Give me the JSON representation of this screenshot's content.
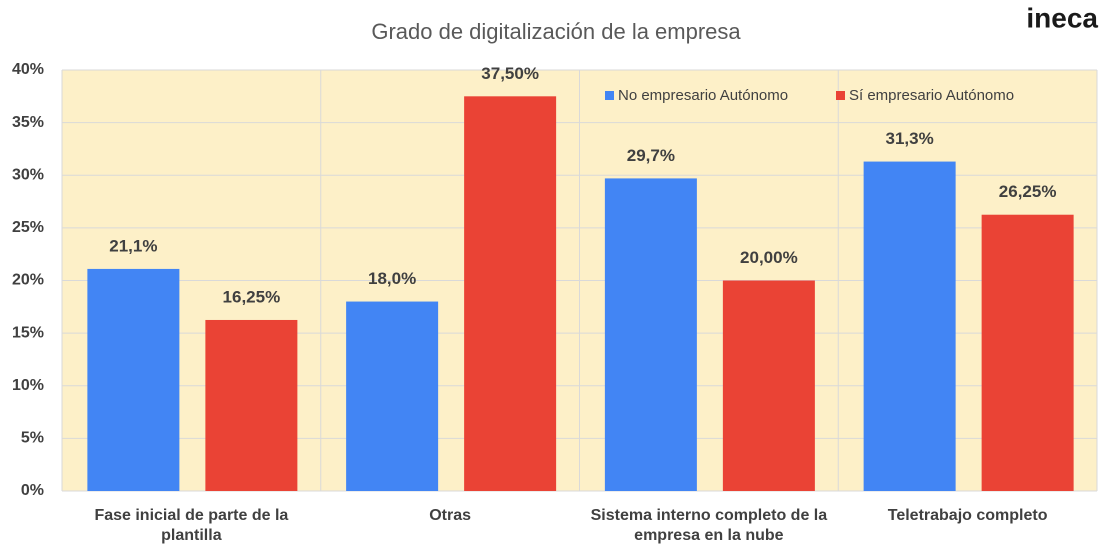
{
  "chart_data": {
    "type": "bar",
    "title": "Grado de digitalización de la empresa",
    "logo": "ineca",
    "categories": [
      "Fase inicial de parte de la plantilla",
      "Otras",
      "Sistema interno completo de la empresa en la nube",
      "Teletrabajo completo"
    ],
    "series": [
      {
        "name": "No empresario Autónomo",
        "color": "#4285f4",
        "values": [
          21.1,
          18.0,
          29.7,
          31.3
        ],
        "value_labels": [
          "21,1%",
          "18,0%",
          "29,7%",
          "31,3%"
        ]
      },
      {
        "name": "Sí empresario Autónomo",
        "color": "#ea4335",
        "values": [
          16.25,
          37.5,
          20.0,
          26.25
        ],
        "value_labels": [
          "16,25%",
          "37,50%",
          "20,00%",
          "26,25%"
        ]
      }
    ],
    "ylim": [
      0,
      40
    ],
    "yticks": [
      {
        "value": 0,
        "label": "0%"
      },
      {
        "value": 5,
        "label": "5%"
      },
      {
        "value": 10,
        "label": "10%"
      },
      {
        "value": 15,
        "label": "15%"
      },
      {
        "value": 20,
        "label": "20%"
      },
      {
        "value": 25,
        "label": "25%"
      },
      {
        "value": 30,
        "label": "30%"
      },
      {
        "value": 35,
        "label": "35%"
      },
      {
        "value": 40,
        "label": "40%"
      }
    ],
    "grid": true,
    "legend": "top-right"
  }
}
